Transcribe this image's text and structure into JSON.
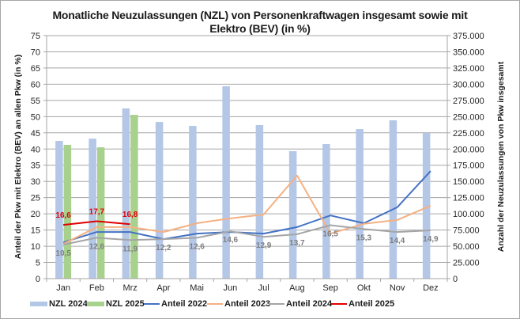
{
  "chart_data": {
    "type": "bar+line",
    "title_line1": "Monatliche Neuzulassungen (NZL)  von Personenkraftwagen insgesamt sowie mit",
    "title_line2": "Elektro (BEV) (in %)",
    "ylabel_left": "Anteil der Pkw mit Elektro (BEV) an allen Pkw (in %)",
    "ylabel_right": "Anzahl der Neuzulassungen von Pkw insgesamt",
    "categories": [
      "Jan",
      "Feb",
      "Mrz",
      "Apr",
      "Mai",
      "Jun",
      "Jul",
      "Aug",
      "Sep",
      "Okt",
      "Nov",
      "Dez"
    ],
    "ylim_left": [
      0,
      75
    ],
    "ylim_right": [
      0,
      375000
    ],
    "yticks_left": [
      "0",
      "5",
      "10",
      "15",
      "20",
      "25",
      "30",
      "35",
      "40",
      "45",
      "50",
      "55",
      "60",
      "65",
      "70",
      "75"
    ],
    "yticks_right": [
      "0",
      "25.000",
      "50.000",
      "75.000",
      "100.000",
      "125.000",
      "150.000",
      "175.000",
      "200.000",
      "225.000",
      "250.000",
      "275.000",
      "300.000",
      "325.000",
      "350.000",
      "375.000"
    ],
    "grid": true,
    "legend_position": "bottom",
    "bar_series": [
      {
        "name": "NZL 2024",
        "color": "#b4c7e7",
        "axis": "right",
        "values": [
          212500,
          216000,
          262600,
          241800,
          235700,
          296800,
          237000,
          196700,
          207700,
          230800,
          244300,
          224800
        ]
      },
      {
        "name": "NZL 2025",
        "color": "#a9d18e",
        "axis": "right",
        "values": [
          206400,
          202700,
          252800,
          null,
          null,
          null,
          null,
          null,
          null,
          null,
          null,
          null
        ]
      }
    ],
    "line_series": [
      {
        "name": "Anteil 2022",
        "color": "#4472c4",
        "axis": "left",
        "values": [
          11.2,
          14.4,
          14.4,
          12.2,
          13.9,
          14.4,
          13.9,
          15.9,
          19.5,
          17.1,
          22.0,
          33.2
        ]
      },
      {
        "name": "Anteil 2023",
        "color": "#f4b183",
        "axis": "left",
        "values": [
          10.7,
          15.9,
          15.9,
          14.4,
          17.1,
          18.6,
          19.8,
          31.8,
          13.9,
          16.9,
          18.1,
          22.5
        ]
      },
      {
        "name": "Anteil 2024",
        "color": "#a5a5a5",
        "axis": "left",
        "values": [
          10.5,
          12.6,
          11.9,
          12.2,
          12.6,
          14.6,
          12.9,
          13.7,
          16.5,
          15.3,
          14.4,
          14.9
        ],
        "labels": [
          "10,5",
          "12,6",
          "11,9",
          "12,2",
          "12,6",
          "14,6",
          "12,9",
          "13,7",
          "16,5",
          "15,3",
          "14,4",
          "14,9"
        ],
        "label_color": "#7f7f7f"
      },
      {
        "name": "Anteil 2025",
        "color": "#e00000",
        "axis": "left",
        "values": [
          16.6,
          17.7,
          16.8,
          null,
          null,
          null,
          null,
          null,
          null,
          null,
          null,
          null
        ],
        "labels": [
          "16,6",
          "17,7",
          "16,8"
        ],
        "label_color": "#e00000"
      }
    ]
  }
}
